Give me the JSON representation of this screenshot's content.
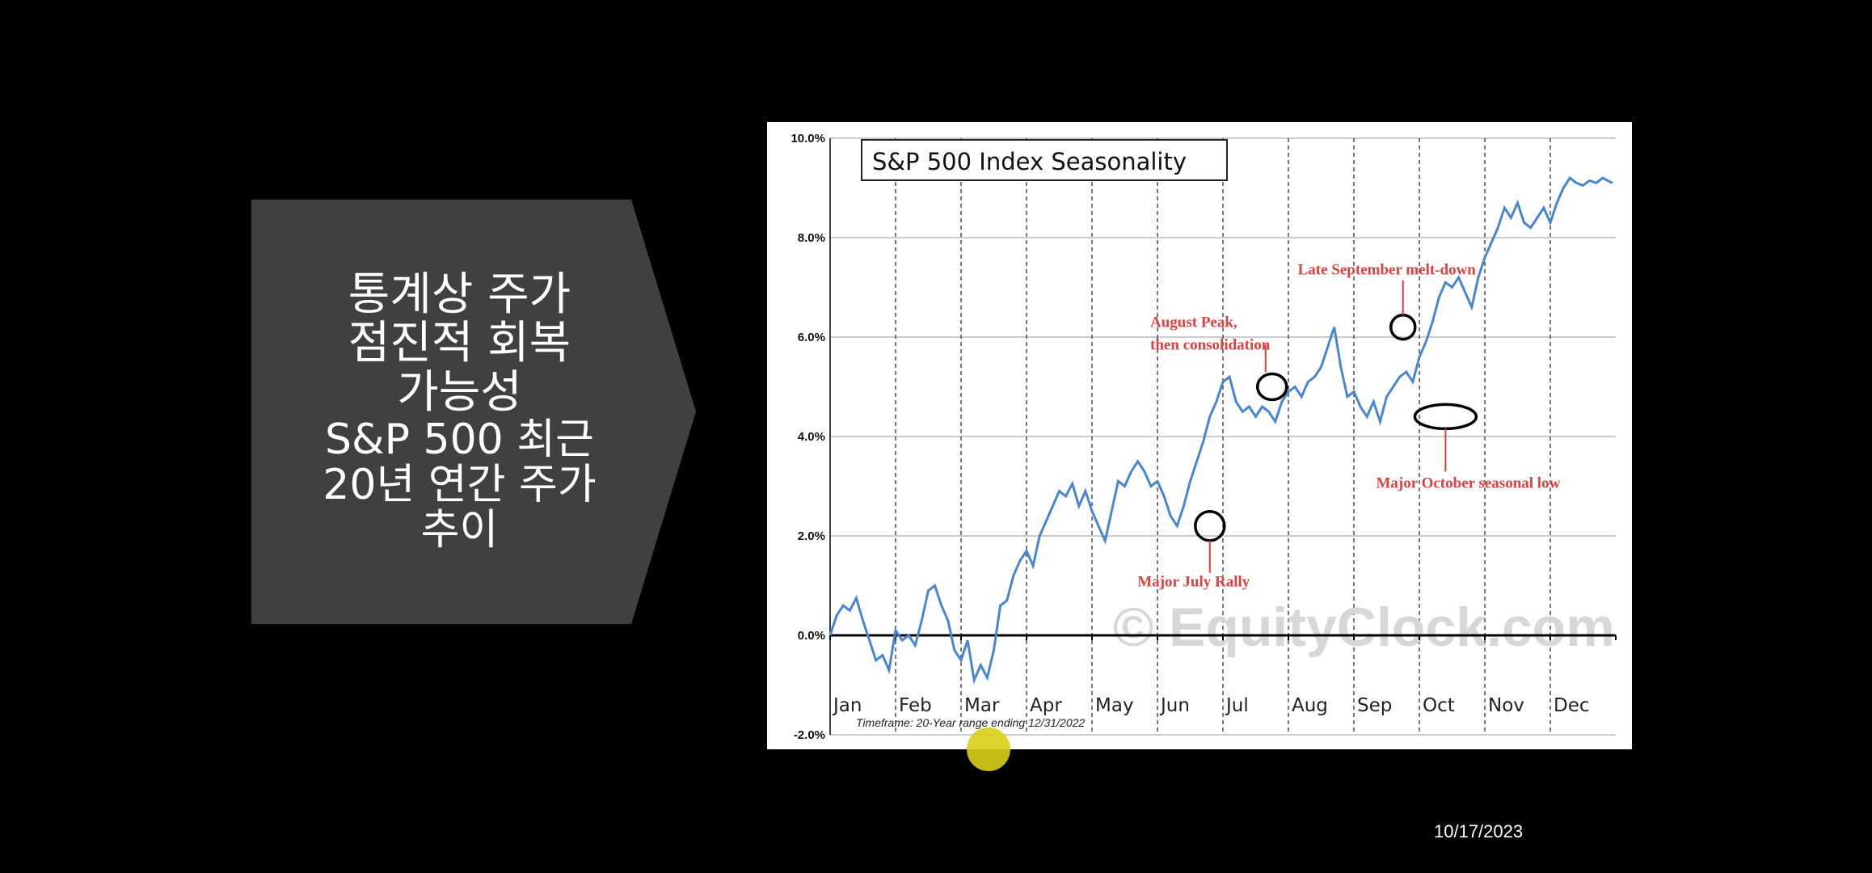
{
  "slide": {
    "title_lines": [
      "통계상 주가",
      "점진적 회복",
      "가능성"
    ],
    "subtitle_lines": [
      "S&P 500 최근",
      "20년 연간 주가",
      "추이"
    ],
    "date": "10/17/2023",
    "shape_color": "#404040"
  },
  "chart_data": {
    "type": "line",
    "title": "S&P 500 Index Seasonality",
    "xlabel": "",
    "ylabel": "",
    "ylim": [
      -2.0,
      10.0
    ],
    "y_ticks": [
      "-2.0%",
      "0.0%",
      "2.0%",
      "4.0%",
      "6.0%",
      "8.0%",
      "10.0%"
    ],
    "months": [
      "Jan",
      "Feb",
      "Mar",
      "Apr",
      "May",
      "Jun",
      "Jul",
      "Aug",
      "Sep",
      "Oct",
      "Nov",
      "Dec"
    ],
    "timeframe_note": "Timeframe: 20-Year range ending 12/31/2022",
    "watermark": "© EquityClock.com",
    "line_color": "#4a86d0",
    "annotation_color": "#e04040",
    "series": [
      {
        "x": [
          0,
          0.1,
          0.2,
          0.3,
          0.4,
          0.5,
          0.6,
          0.7,
          0.8,
          0.9,
          1.0,
          1.1,
          1.2,
          1.3,
          1.4,
          1.5,
          1.6,
          1.7,
          1.8,
          1.9,
          2.0,
          2.1,
          2.2,
          2.3,
          2.4,
          2.5,
          2.6,
          2.7,
          2.8,
          2.9,
          3.0,
          3.1,
          3.2,
          3.3,
          3.4,
          3.5,
          3.6,
          3.7,
          3.8,
          3.9,
          4.0,
          4.1,
          4.2,
          4.3,
          4.4,
          4.5,
          4.6,
          4.7,
          4.8,
          4.9,
          5.0,
          5.1,
          5.2,
          5.3,
          5.4,
          5.5,
          5.6,
          5.7,
          5.8,
          5.9,
          6.0,
          6.1,
          6.2,
          6.3,
          6.4,
          6.5,
          6.6,
          6.7,
          6.8,
          6.9,
          7.0,
          7.1,
          7.2,
          7.3,
          7.4,
          7.5,
          7.6,
          7.7,
          7.8,
          7.9,
          8.0,
          8.1,
          8.2,
          8.3,
          8.4,
          8.5,
          8.6,
          8.7,
          8.8,
          8.9,
          9.0,
          9.1,
          9.2,
          9.3,
          9.4,
          9.5,
          9.6,
          9.7,
          9.8,
          9.9,
          10.0,
          10.1,
          10.2,
          10.3,
          10.4,
          10.5,
          10.6,
          10.7,
          10.8,
          10.9,
          11.0,
          11.1,
          11.2,
          11.3,
          11.4,
          11.5,
          11.6,
          11.7,
          11.8,
          11.95
        ],
        "y": [
          0.0,
          0.4,
          0.6,
          0.5,
          0.75,
          0.3,
          -0.1,
          -0.5,
          -0.4,
          -0.7,
          0.1,
          -0.1,
          0.0,
          -0.2,
          0.3,
          0.9,
          1.0,
          0.6,
          0.3,
          -0.3,
          -0.5,
          -0.1,
          -0.9,
          -0.6,
          -0.85,
          -0.3,
          0.6,
          0.7,
          1.2,
          1.5,
          1.7,
          1.4,
          2.0,
          2.3,
          2.6,
          2.9,
          2.8,
          3.05,
          2.6,
          2.9,
          2.5,
          2.2,
          1.9,
          2.5,
          3.1,
          3.0,
          3.3,
          3.5,
          3.3,
          3.0,
          3.1,
          2.8,
          2.4,
          2.2,
          2.6,
          3.1,
          3.5,
          3.9,
          4.4,
          4.7,
          5.1,
          5.2,
          4.7,
          4.5,
          4.6,
          4.4,
          4.6,
          4.5,
          4.3,
          4.7,
          4.9,
          5.0,
          4.8,
          5.1,
          5.2,
          5.4,
          5.8,
          6.2,
          5.4,
          4.8,
          4.9,
          4.6,
          4.4,
          4.7,
          4.3,
          4.8,
          5.0,
          5.2,
          5.3,
          5.1,
          5.6,
          5.9,
          6.3,
          6.8,
          7.1,
          7.0,
          7.2,
          6.9,
          6.6,
          7.2,
          7.6,
          7.9,
          8.2,
          8.6,
          8.4,
          8.7,
          8.3,
          8.2,
          8.4,
          8.6,
          8.3,
          8.7,
          9.0,
          9.2,
          9.1,
          9.05,
          9.15,
          9.1,
          9.2,
          9.1
        ]
      }
    ],
    "annotations": [
      {
        "label": "Major July Rally",
        "x": 5.8,
        "y": 2.2
      },
      {
        "label": "August Peak, then consolidation",
        "x": 6.75,
        "y": 5.0
      },
      {
        "label": "Late September melt-down",
        "x": 8.75,
        "y": 6.2
      },
      {
        "label": "Major October seasonal low",
        "x": 9.4,
        "y": 4.4
      }
    ]
  }
}
